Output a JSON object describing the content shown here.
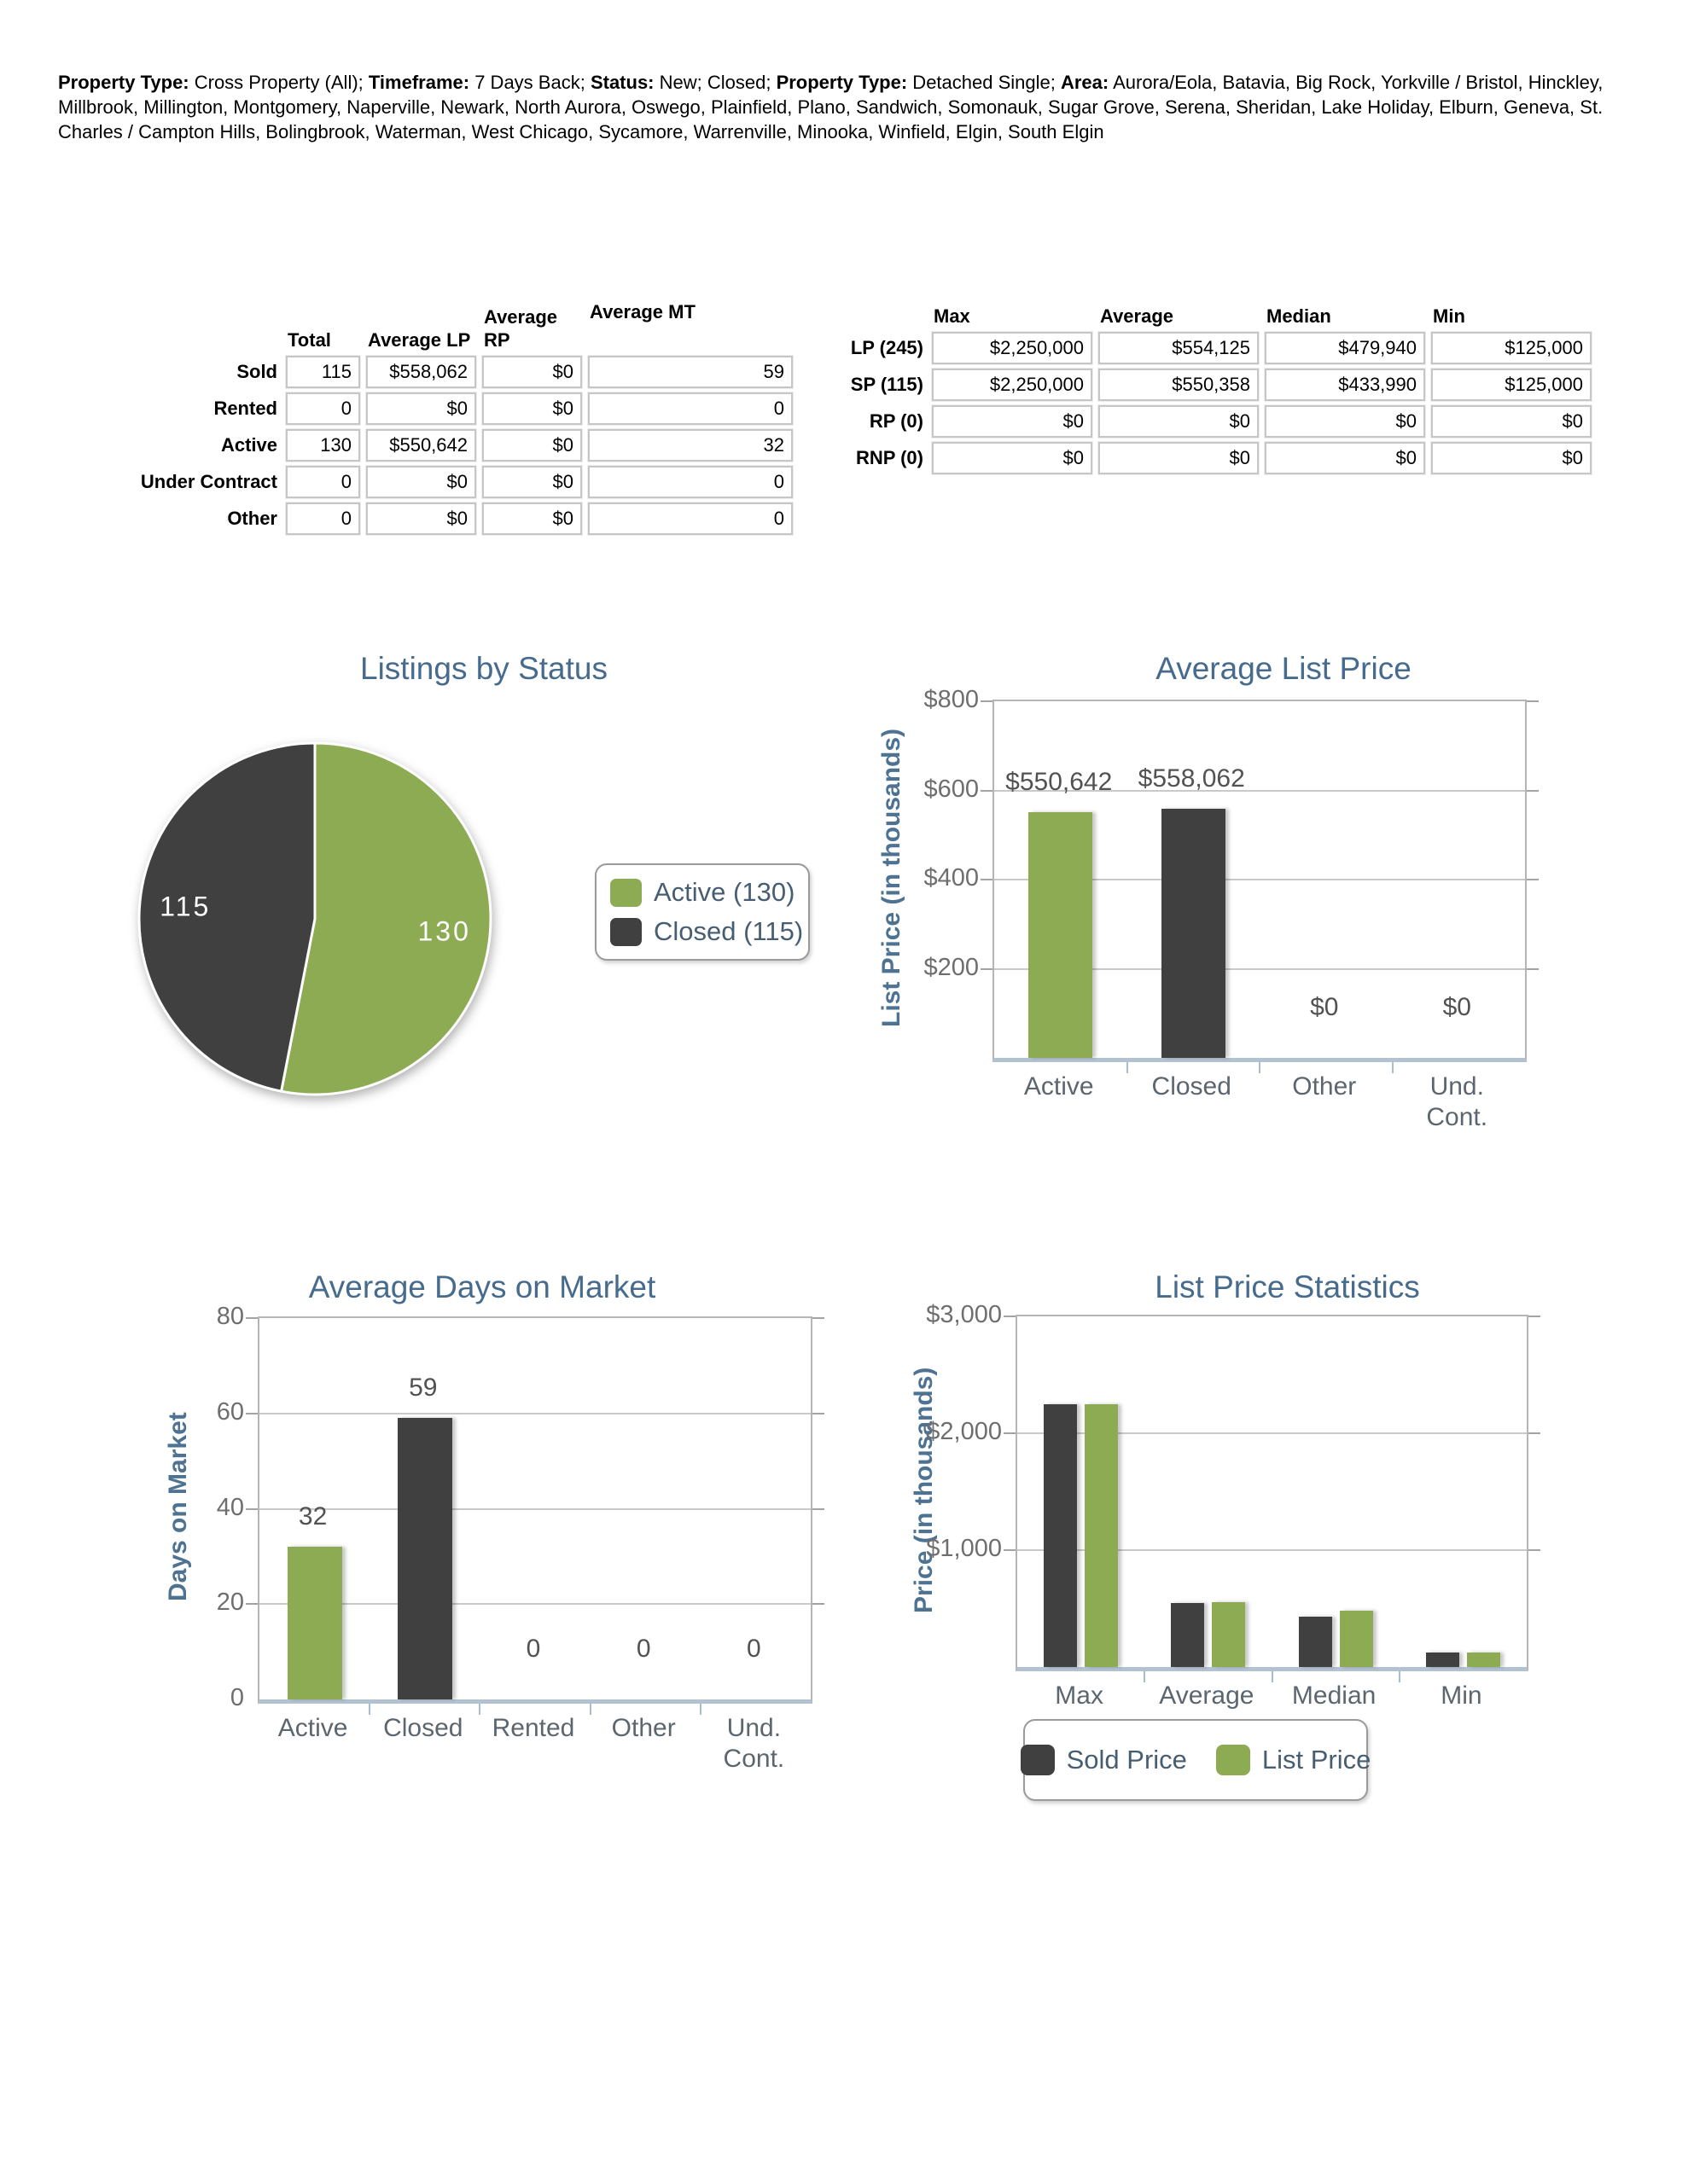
{
  "header": {
    "segments": [
      {
        "bold": true,
        "text": "Property Type:"
      },
      {
        "bold": false,
        "text": " Cross Property (All); "
      },
      {
        "bold": true,
        "text": "Timeframe:"
      },
      {
        "bold": false,
        "text": " 7 Days Back; "
      },
      {
        "bold": true,
        "text": "Status:"
      },
      {
        "bold": false,
        "text": " New; Closed; "
      },
      {
        "bold": true,
        "text": "Property Type:"
      },
      {
        "bold": false,
        "text": " Detached Single; "
      },
      {
        "bold": true,
        "text": "Area:"
      },
      {
        "bold": false,
        "text": " Aurora/Eola, Batavia, Big Rock, Yorkville / Bristol, Hinckley, Millbrook, Millington, Montgomery, Naperville, Newark, North Aurora, Oswego, Plainfield, Plano, Sandwich, Somonauk, Sugar Grove, Serena, Sheridan, Lake Holiday, Elburn, Geneva, St. Charles / Campton Hills, Bolingbrook, Waterman, West Chicago, Sycamore, Warrenville, Minooka, Winfield, Elgin, South Elgin"
      }
    ]
  },
  "tables": {
    "summary": {
      "columns": [
        "Total",
        "Average LP",
        "Average RP",
        "Average MT"
      ],
      "rows": [
        {
          "label": "Sold",
          "values": [
            "115",
            "$558,062",
            "$0",
            "59"
          ]
        },
        {
          "label": "Rented",
          "values": [
            "0",
            "$0",
            "$0",
            "0"
          ]
        },
        {
          "label": "Active",
          "values": [
            "130",
            "$550,642",
            "$0",
            "32"
          ]
        },
        {
          "label": "Under Contract",
          "values": [
            "0",
            "$0",
            "$0",
            "0"
          ]
        },
        {
          "label": "Other",
          "values": [
            "0",
            "$0",
            "$0",
            "0"
          ]
        }
      ]
    },
    "price_stats": {
      "columns": [
        "Max",
        "Average",
        "Median",
        "Min"
      ],
      "rows": [
        {
          "label": "LP (245)",
          "values": [
            "$2,250,000",
            "$554,125",
            "$479,940",
            "$125,000"
          ]
        },
        {
          "label": "SP (115)",
          "values": [
            "$2,250,000",
            "$550,358",
            "$433,990",
            "$125,000"
          ]
        },
        {
          "label": "RP (0)",
          "values": [
            "$0",
            "$0",
            "$0",
            "$0"
          ]
        },
        {
          "label": "RNP (0)",
          "values": [
            "$0",
            "$0",
            "$0",
            "$0"
          ]
        }
      ]
    }
  },
  "colors": {
    "green": "#8cab53",
    "dark": "#404040",
    "title_blue": "#466b8d",
    "axis_blue": "#4e7392"
  },
  "chart_data": [
    {
      "id": "listings_by_status",
      "type": "pie",
      "title": "Listings by Status",
      "slices": [
        {
          "label": "Active",
          "value": 130,
          "color": "#8cab53"
        },
        {
          "label": "Closed",
          "value": 115,
          "color": "#404040"
        }
      ],
      "legend_position": "right"
    },
    {
      "id": "average_list_price",
      "type": "bar",
      "title": "Average List Price",
      "ylabel": "List Price (in thousands)",
      "categories": [
        "Active",
        "Closed",
        "Other",
        "Und. Cont."
      ],
      "values": [
        550.642,
        558.062,
        0,
        0
      ],
      "bar_labels": [
        "$550,642",
        "$558,062",
        "$0",
        "$0"
      ],
      "bar_colors": [
        "#8cab53",
        "#404040",
        null,
        null
      ],
      "ymax": 800,
      "yticks": [
        {
          "value": 800,
          "label": "$800"
        },
        {
          "value": 600,
          "label": "$600"
        },
        {
          "value": 400,
          "label": "$400"
        },
        {
          "value": 200,
          "label": "$200"
        }
      ],
      "grid": true
    },
    {
      "id": "average_days_on_market",
      "type": "bar",
      "title": "Average Days on Market",
      "ylabel": "Days on Market",
      "categories": [
        "Active",
        "Closed",
        "Rented",
        "Other",
        "Und. Cont."
      ],
      "values": [
        32,
        59,
        0,
        0,
        0
      ],
      "bar_labels": [
        "32",
        "59",
        "0",
        "0",
        "0"
      ],
      "bar_colors": [
        "#8cab53",
        "#404040",
        null,
        null,
        null
      ],
      "ymax": 80,
      "yticks": [
        {
          "value": 80,
          "label": "80"
        },
        {
          "value": 60,
          "label": "60"
        },
        {
          "value": 40,
          "label": "40"
        },
        {
          "value": 20,
          "label": "20"
        },
        {
          "value": 0,
          "label": "0"
        }
      ],
      "grid": true
    },
    {
      "id": "list_price_statistics",
      "type": "grouped_bar",
      "title": "List Price Statistics",
      "ylabel": "Price (in thousands)",
      "categories": [
        "Max",
        "Average",
        "Median",
        "Min"
      ],
      "series": [
        {
          "name": "Sold Price",
          "color": "#404040",
          "values": [
            2250,
            550.358,
            433.99,
            125
          ]
        },
        {
          "name": "List Price",
          "color": "#8cab53",
          "values": [
            2250,
            554.125,
            479.94,
            125
          ]
        }
      ],
      "ymax": 3000,
      "yticks": [
        {
          "value": 3000,
          "label": "$3,000"
        },
        {
          "value": 2000,
          "label": "$2,000"
        },
        {
          "value": 1000,
          "label": "$1,000"
        }
      ],
      "legend_position": "bottom",
      "grid": true
    }
  ]
}
